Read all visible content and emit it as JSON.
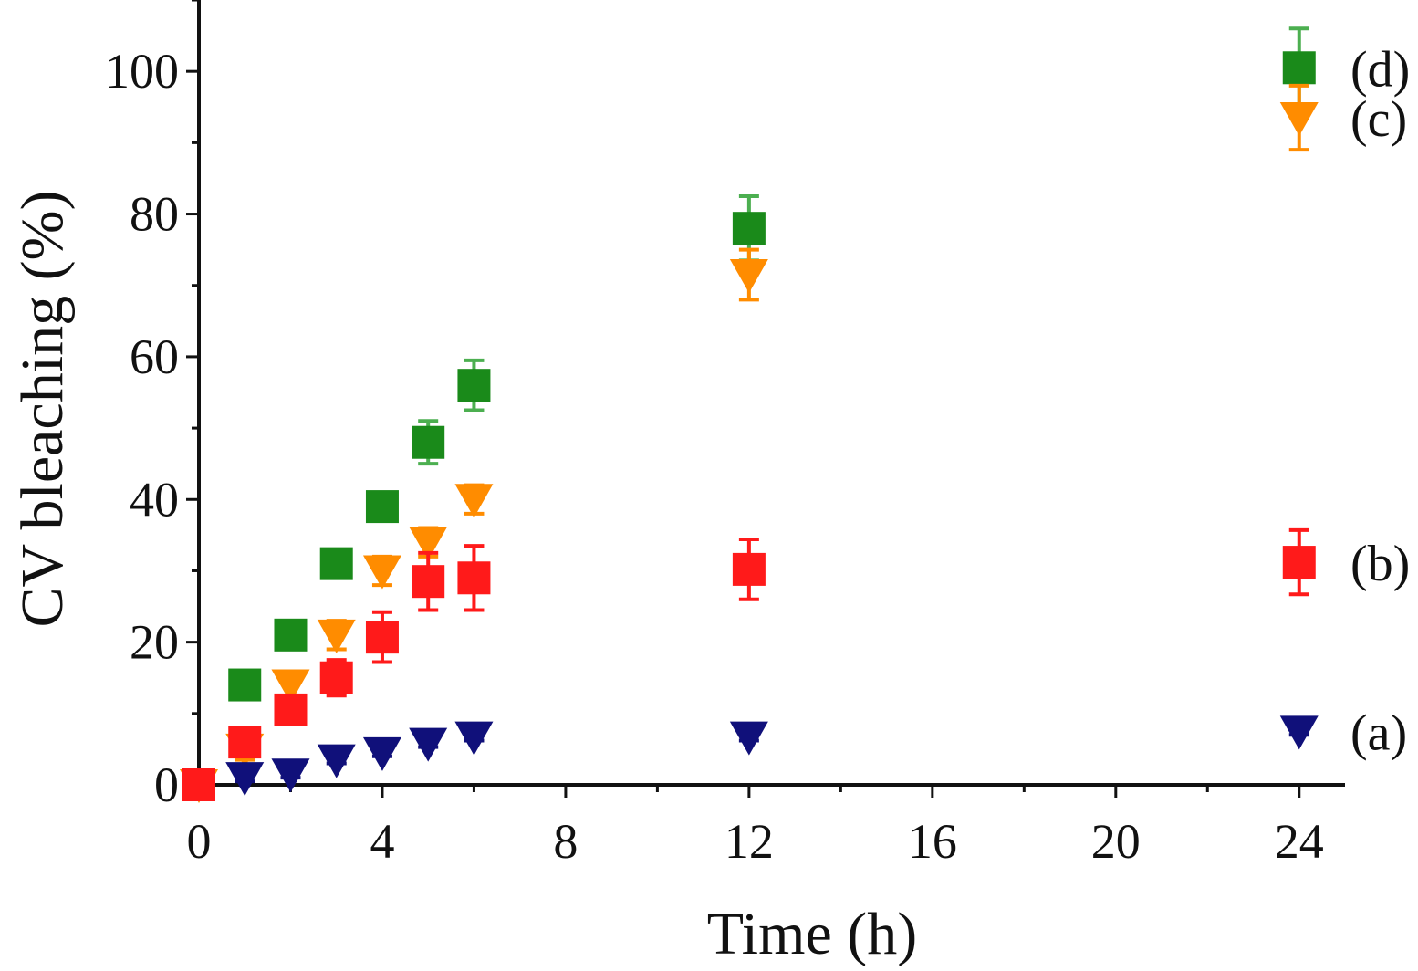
{
  "chart_data": {
    "type": "scatter",
    "title": "",
    "xlabel": "Time (h)",
    "ylabel": "CV bleaching (%)",
    "xlim": [
      0,
      25
    ],
    "ylim": [
      0,
      110
    ],
    "xticks": [
      0,
      4,
      8,
      12,
      16,
      20,
      24
    ],
    "yticks": [
      0,
      20,
      40,
      60,
      80,
      100
    ],
    "grid": false,
    "legend": "inline labels at right end of each series",
    "series": [
      {
        "name": "(d)",
        "marker": "square",
        "color": "#1a8a1a",
        "errcolor": "#4caf50",
        "x": [
          1,
          2,
          3,
          4,
          5,
          6,
          12,
          24
        ],
        "y": [
          14,
          21,
          31,
          39,
          48,
          56,
          78,
          100.5
        ],
        "err": [
          1,
          1,
          1,
          1.5,
          3,
          3.5,
          4.5,
          5.5
        ]
      },
      {
        "name": "(c)",
        "marker": "triangle-down",
        "color": "#ff8c00",
        "errcolor": "#ff8c00",
        "x": [
          0,
          1,
          2,
          3,
          4,
          5,
          6,
          12,
          24
        ],
        "y": [
          0,
          5,
          14,
          21,
          30,
          34,
          40,
          71.5,
          93.5
        ],
        "err": [
          0,
          1.5,
          1.5,
          2,
          2,
          2,
          2,
          3.5,
          4.5
        ]
      },
      {
        "name": "(b)",
        "marker": "square",
        "color": "#ff1a1a",
        "errcolor": "#ff1a1a",
        "x": [
          0,
          1,
          2,
          3,
          4,
          5,
          6,
          12,
          24
        ],
        "y": [
          0,
          6,
          10.5,
          15,
          20.7,
          28.5,
          29,
          30.2,
          31.2
        ],
        "err": [
          0,
          1,
          1.5,
          2.5,
          3.5,
          4,
          4.5,
          4.2,
          4.5
        ]
      },
      {
        "name": "(a)",
        "marker": "triangle-down",
        "color": "#10107a",
        "errcolor": "#10107a",
        "x": [
          1,
          2,
          3,
          4,
          5,
          6,
          12,
          24
        ],
        "y": [
          1,
          1.5,
          3.5,
          4.5,
          5.8,
          6.7,
          6.7,
          7.5
        ],
        "err": [
          0.5,
          0.5,
          0.5,
          0.5,
          0.5,
          0.5,
          0.5,
          0.5
        ]
      }
    ]
  }
}
